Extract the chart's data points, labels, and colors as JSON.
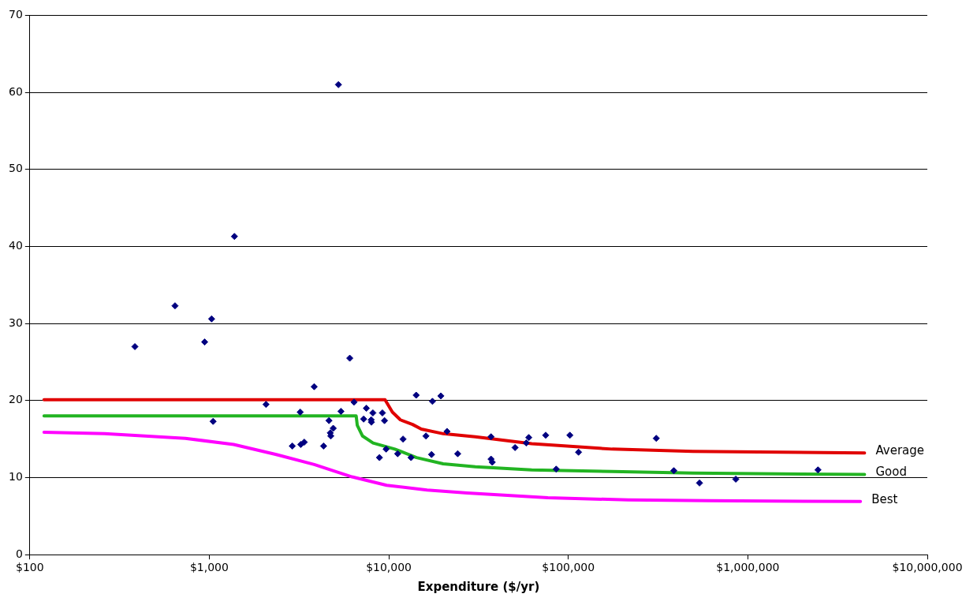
{
  "chart_data": {
    "type": "scatter",
    "xlabel": "Expenditure ($/yr)",
    "log": "x",
    "xlim": [
      100,
      10000000
    ],
    "xticks": [
      {
        "value": 100,
        "label": "$100"
      },
      {
        "value": 1000,
        "label": "$1,000"
      },
      {
        "value": 10000,
        "label": "$10,000"
      },
      {
        "value": 100000,
        "label": "$100,000"
      },
      {
        "value": 1000000,
        "label": "$1,000,000"
      },
      {
        "value": 10000000,
        "label": "$10,000,000"
      }
    ],
    "ylim": [
      0,
      70
    ],
    "yticks": [
      0,
      10,
      20,
      30,
      40,
      50,
      60,
      70
    ],
    "grid": "y",
    "legend": false,
    "series": [
      {
        "type": "scatter",
        "marker": "diamond",
        "color": "#000080",
        "x": [
          385,
          644,
          942,
          1030,
          1050,
          1380,
          2070,
          2900,
          3210,
          3230,
          3380,
          3840,
          4330,
          4640,
          4720,
          4750,
          4900,
          5240,
          5410,
          6060,
          6400,
          7240,
          7500,
          7980,
          8000,
          8150,
          8870,
          9210,
          9460,
          9660,
          11200,
          12000,
          13300,
          14200,
          16100,
          17300,
          17500,
          19500,
          21100,
          24200,
          37100,
          37100,
          37700,
          50500,
          58300,
          60200,
          74800,
          85600,
          102000,
          114000,
          309000,
          387000,
          538000,
          857000,
          2460000
        ],
        "values": [
          27.0,
          32.3,
          27.6,
          30.6,
          17.3,
          41.3,
          19.5,
          14.1,
          18.5,
          14.3,
          14.6,
          21.8,
          14.1,
          17.4,
          15.8,
          15.4,
          16.4,
          61.0,
          18.6,
          25.5,
          19.8,
          17.6,
          19.0,
          17.5,
          17.2,
          18.4,
          12.6,
          18.4,
          17.4,
          13.7,
          13.1,
          15.0,
          12.6,
          20.7,
          15.4,
          13.0,
          19.9,
          20.6,
          16.0,
          13.1,
          15.3,
          12.4,
          12.0,
          13.9,
          14.5,
          15.2,
          15.5,
          11.1,
          15.5,
          13.3,
          15.1,
          10.9,
          9.3,
          9.8,
          11.0
        ]
      },
      {
        "type": "line",
        "name": "Average",
        "marker": "none",
        "color": "#e00000",
        "x": [
          120,
          9530,
          10470,
          11600,
          13560,
          15180,
          20080,
          30340,
          62530,
          175800,
          494000,
          4470000
        ],
        "values": [
          20.1,
          20.1,
          18.5,
          17.5,
          16.9,
          16.3,
          15.7,
          15.3,
          14.4,
          13.7,
          13.4,
          13.2
        ]
      },
      {
        "type": "line",
        "name": "Good",
        "marker": "none",
        "color": "#22b422",
        "x": [
          120,
          6580,
          6670,
          7140,
          8170,
          10800,
          14260,
          20080,
          30340,
          62530,
          175800,
          494000,
          4470000
        ],
        "values": [
          18.0,
          18.0,
          16.8,
          15.4,
          14.5,
          13.7,
          12.6,
          11.8,
          11.4,
          11.0,
          10.8,
          10.6,
          10.4
        ]
      },
      {
        "type": "line",
        "name": "Best",
        "marker": "none",
        "color": "#ff00ff",
        "x": [
          120,
          261,
          735,
          1367,
          2362,
          3840,
          6240,
          9730,
          16330,
          27350,
          76900,
          216000,
          608000,
          4240000
        ],
        "values": [
          15.9,
          15.7,
          15.1,
          14.3,
          13.0,
          11.7,
          10.1,
          9.0,
          8.4,
          8.0,
          7.4,
          7.1,
          7.0,
          6.9
        ]
      }
    ]
  }
}
